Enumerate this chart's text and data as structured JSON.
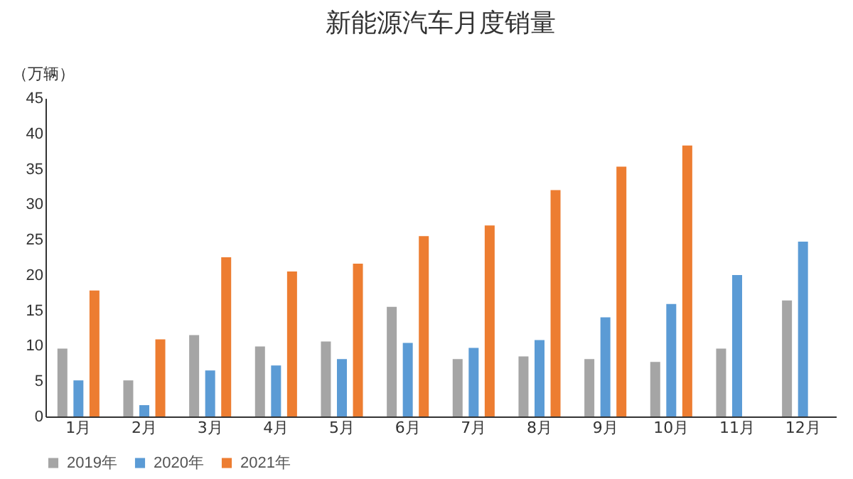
{
  "chart_data": {
    "type": "bar",
    "title": "新能源汽车月度销量",
    "ylabel": "（万辆）",
    "categories": [
      "1月",
      "2月",
      "3月",
      "4月",
      "5月",
      "6月",
      "7月",
      "8月",
      "9月",
      "10月",
      "11月",
      "12月"
    ],
    "series": [
      {
        "name": "2019年",
        "color": "#a5a5a5",
        "values": [
          9.6,
          5.1,
          11.5,
          9.9,
          10.6,
          15.5,
          8.1,
          8.5,
          8.1,
          7.7,
          9.6,
          16.4
        ]
      },
      {
        "name": "2020年",
        "color": "#5b9bd5",
        "values": [
          5.1,
          1.6,
          6.5,
          7.2,
          8.1,
          10.4,
          9.7,
          10.8,
          14.0,
          15.9,
          20.0,
          24.7
        ]
      },
      {
        "name": "2021年",
        "color": "#ed7d31",
        "values": [
          17.8,
          10.9,
          22.5,
          20.5,
          21.6,
          25.5,
          27.0,
          32.0,
          35.3,
          38.3,
          null,
          null
        ]
      }
    ],
    "ylim": [
      0,
      45
    ],
    "yticks": [
      0,
      5,
      10,
      15,
      20,
      25,
      30,
      35,
      40,
      45
    ],
    "grid": false,
    "legend": "bottom"
  }
}
